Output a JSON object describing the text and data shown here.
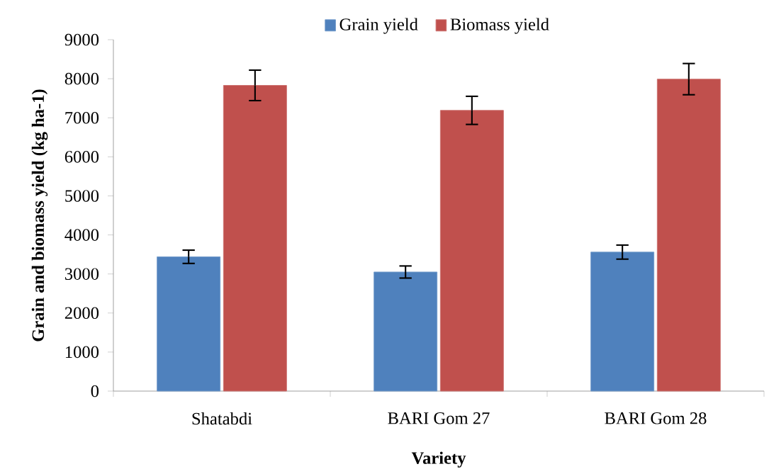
{
  "chart_data": {
    "type": "bar",
    "xlabel": "Variety",
    "ylabel": "Grain and biomass yield (kg ha-1)",
    "categories": [
      "Shatabdi",
      "BARI Gom 27",
      "BARI Gom 28"
    ],
    "series": [
      {
        "name": "Grain yield",
        "color": "#4f81bd",
        "values": [
          3440,
          3050,
          3560
        ],
        "errors": [
          170,
          155,
          180
        ]
      },
      {
        "name": "Biomass yield",
        "color": "#c0504d",
        "values": [
          7830,
          7190,
          7990
        ],
        "errors": [
          390,
          360,
          400
        ]
      }
    ],
    "ylim": [
      0,
      9000
    ],
    "yticks": [
      0,
      1000,
      2000,
      3000,
      4000,
      5000,
      6000,
      7000,
      8000,
      9000
    ],
    "grid": false,
    "legend": "top"
  }
}
